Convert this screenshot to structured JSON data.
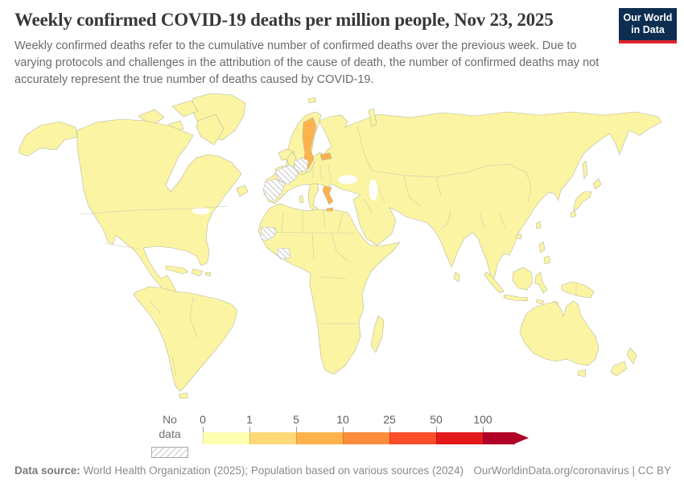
{
  "header": {
    "title": "Weekly confirmed COVID-19 deaths per million people, Nov 23, 2025",
    "subtitle": "Weekly confirmed deaths refer to the cumulative number of confirmed deaths over the previous week. Due to varying protocols and challenges in the attribution of the cause of death, the number of confirmed deaths may not accurately represent the true number of deaths caused by COVID-19.",
    "logo": {
      "line1": "Our World",
      "line2": "in Data",
      "bg": "#0d2d51",
      "accent": "#e0242e"
    }
  },
  "chart_data": {
    "type": "choropleth-map",
    "title": "Weekly confirmed COVID-19 deaths per million people",
    "date": "Nov 23, 2025",
    "unit": "weekly confirmed COVID-19 deaths per million people",
    "legend": {
      "no_data_label": "No data",
      "bins": [
        {
          "tick": "0",
          "color": "#ffffb2"
        },
        {
          "tick": "1",
          "color": "#fed976"
        },
        {
          "tick": "5",
          "color": "#feb24c"
        },
        {
          "tick": "10",
          "color": "#fd8d3c"
        },
        {
          "tick": "25",
          "color": "#fc4e2a"
        },
        {
          "tick": "50",
          "color": "#e31a1c"
        },
        {
          "tick": "100",
          "color": "#b10026"
        }
      ],
      "open_ended_arrow": true
    },
    "map": {
      "sea_color": "#ffffff",
      "default_fill": "#fbf4a2",
      "border_color": "#b8b89e",
      "highlight_color": "#feb24c",
      "regions_highlighted": [
        {
          "name": "Sweden",
          "bin": "5-10"
        },
        {
          "name": "Latvia",
          "bin": "5-10"
        },
        {
          "name": "Greece",
          "bin": "5-10"
        }
      ],
      "regions_no_data": [
        "France",
        "Spain",
        "Germany",
        "Western Sahara",
        "Côte d'Ivoire"
      ],
      "all_other_regions_bin": "0-1"
    }
  },
  "footer": {
    "source_label": "Data source:",
    "source_text": "World Health Organization (2025); Population based on various sources (2024)",
    "link": "OurWorldinData.org/coronavirus | CC BY"
  }
}
